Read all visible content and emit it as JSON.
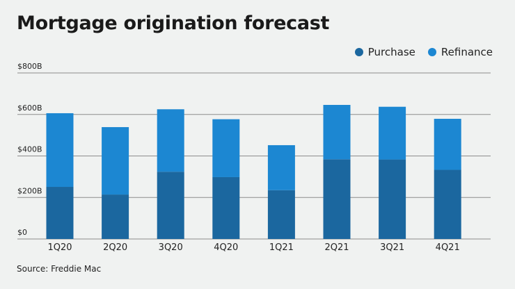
{
  "chart_data": {
    "type": "bar",
    "stacked": true,
    "title": "Mortgage origination forecast",
    "categories": [
      "1Q20",
      "2Q20",
      "3Q20",
      "4Q20",
      "1Q21",
      "2Q21",
      "3Q21",
      "4Q21"
    ],
    "series": [
      {
        "name": "Purchase",
        "color": "#1b679f",
        "values": [
          251,
          214,
          324,
          298,
          235,
          384,
          383,
          333
        ]
      },
      {
        "name": "Refinance",
        "color": "#1c87d2",
        "values": [
          355,
          325,
          301,
          279,
          217,
          262,
          254,
          246
        ]
      }
    ],
    "ylim": [
      0,
      800
    ],
    "yticks": [
      0,
      200,
      400,
      600,
      800
    ],
    "ytick_labels": [
      "$0",
      "$200B",
      "$400B",
      "$600B",
      "$800B"
    ],
    "grid": true,
    "legend": "top-right",
    "source": "Source: Freddie Mac"
  }
}
